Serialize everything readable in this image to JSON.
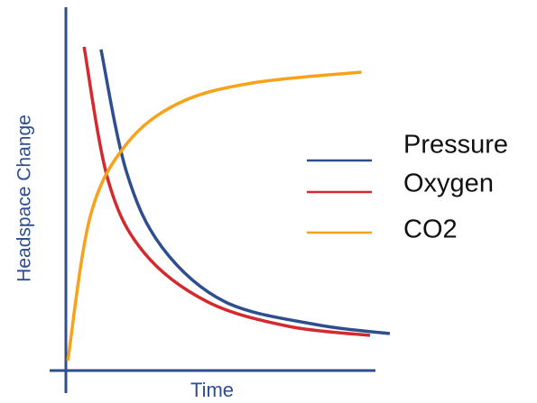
{
  "chart_data": {
    "type": "line",
    "xlabel": "Time",
    "ylabel": "Headspace Change",
    "xlim": [
      0,
      100
    ],
    "ylim": [
      0,
      100
    ],
    "series": [
      {
        "name": "Pressure",
        "color": "#2e4e8f",
        "x": [
          10.8,
          18.6,
          29.7,
          49,
          77,
          99.7
        ],
        "values": [
          88.8,
          55,
          33.8,
          18.8,
          12.5,
          10
        ]
      },
      {
        "name": "Oxygen",
        "color": "#d42a2f",
        "x": [
          5.6,
          13,
          24,
          43.6,
          68.6,
          93.6
        ],
        "values": [
          89.5,
          52.5,
          32.5,
          18.8,
          12,
          9.5
        ]
      },
      {
        "name": "CO2",
        "color": "#f7a21b",
        "x": [
          0.6,
          7.5,
          18.6,
          35,
          57.5,
          91
        ],
        "values": [
          2.5,
          42.5,
          62.5,
          74,
          79.5,
          82.5
        ]
      }
    ],
    "legend": "right"
  }
}
